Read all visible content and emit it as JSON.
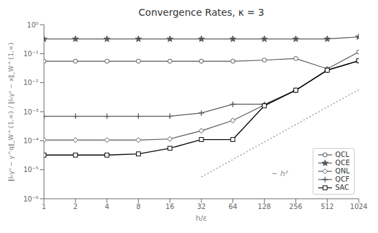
{
  "chart_data": {
    "type": "line",
    "title": "Convergence Rates, κ = 3",
    "x_label": "h/ε",
    "y_label": "‖Iₕyᵃ − y^q‖_W^{1,∞} / ‖Iₕyᵃ − x‖_W^{1,∞}",
    "x": [
      1,
      2,
      4,
      8,
      16,
      32,
      64,
      128,
      256,
      512,
      1024
    ],
    "series": [
      {
        "name": "QCL",
        "color": "#555555",
        "marker": "circle",
        "line_style": "solid",
        "values": [
          0.055,
          0.055,
          0.055,
          0.055,
          0.055,
          0.055,
          0.055,
          0.06,
          0.068,
          0.03,
          0.115
        ]
      },
      {
        "name": "QCE",
        "color": "#555555",
        "marker": "star",
        "line_style": "solid",
        "values": [
          0.32,
          0.32,
          0.32,
          0.32,
          0.32,
          0.32,
          0.32,
          0.32,
          0.32,
          0.32,
          0.38
        ]
      },
      {
        "name": "QNL",
        "color": "#555555",
        "marker": "diamond",
        "line_style": "solid",
        "values": [
          0.000105,
          0.000105,
          0.000105,
          0.000105,
          0.000115,
          0.00022,
          0.0005,
          0.0017,
          0.0055,
          0.027,
          0.057
        ]
      },
      {
        "name": "QCF",
        "color": "#555555",
        "marker": "plus",
        "line_style": "solid",
        "values": [
          0.0007,
          0.0007,
          0.0007,
          0.0007,
          0.0007,
          0.0009,
          0.0018,
          0.0018,
          0.0055,
          0.027,
          0.057
        ]
      },
      {
        "name": "SAC",
        "color": "#000000",
        "marker": "square",
        "line_style": "solid",
        "values": [
          3.2e-05,
          3.2e-05,
          3.2e-05,
          3.5e-05,
          5.5e-05,
          0.00011,
          0.00011,
          0.0016,
          0.0055,
          0.027,
          0.057
        ]
      },
      {
        "x": [
          32,
          1024
        ],
        "color": "#888888",
        "line_style": "dotted",
        "values": [
          5.632e-06,
          0.005767168
        ]
      }
    ],
    "annotations": [
      {
        "text": "∼ h²",
        "x": 150,
        "y": 6e-06,
        "color": "#888888"
      }
    ],
    "log": true,
    "xlim": [
      1,
      1024
    ],
    "ylim": [
      1e-06,
      1
    ],
    "xticks": [
      1,
      2,
      4,
      8,
      16,
      32,
      64,
      128,
      256,
      512,
      1024
    ],
    "yticks": [
      {
        "value": 1e-06,
        "label": "10⁻⁶"
      },
      {
        "value": 1e-05,
        "label": "10⁻⁵"
      },
      {
        "value": 0.0001,
        "label": "10⁻⁴"
      },
      {
        "value": 0.001,
        "label": "10⁻³"
      },
      {
        "value": 0.01,
        "label": "10⁻²"
      },
      {
        "value": 0.1,
        "label": "10⁻¹"
      },
      {
        "value": 1,
        "label": "10⁰"
      }
    ],
    "grid": false,
    "legend": "lower right"
  }
}
